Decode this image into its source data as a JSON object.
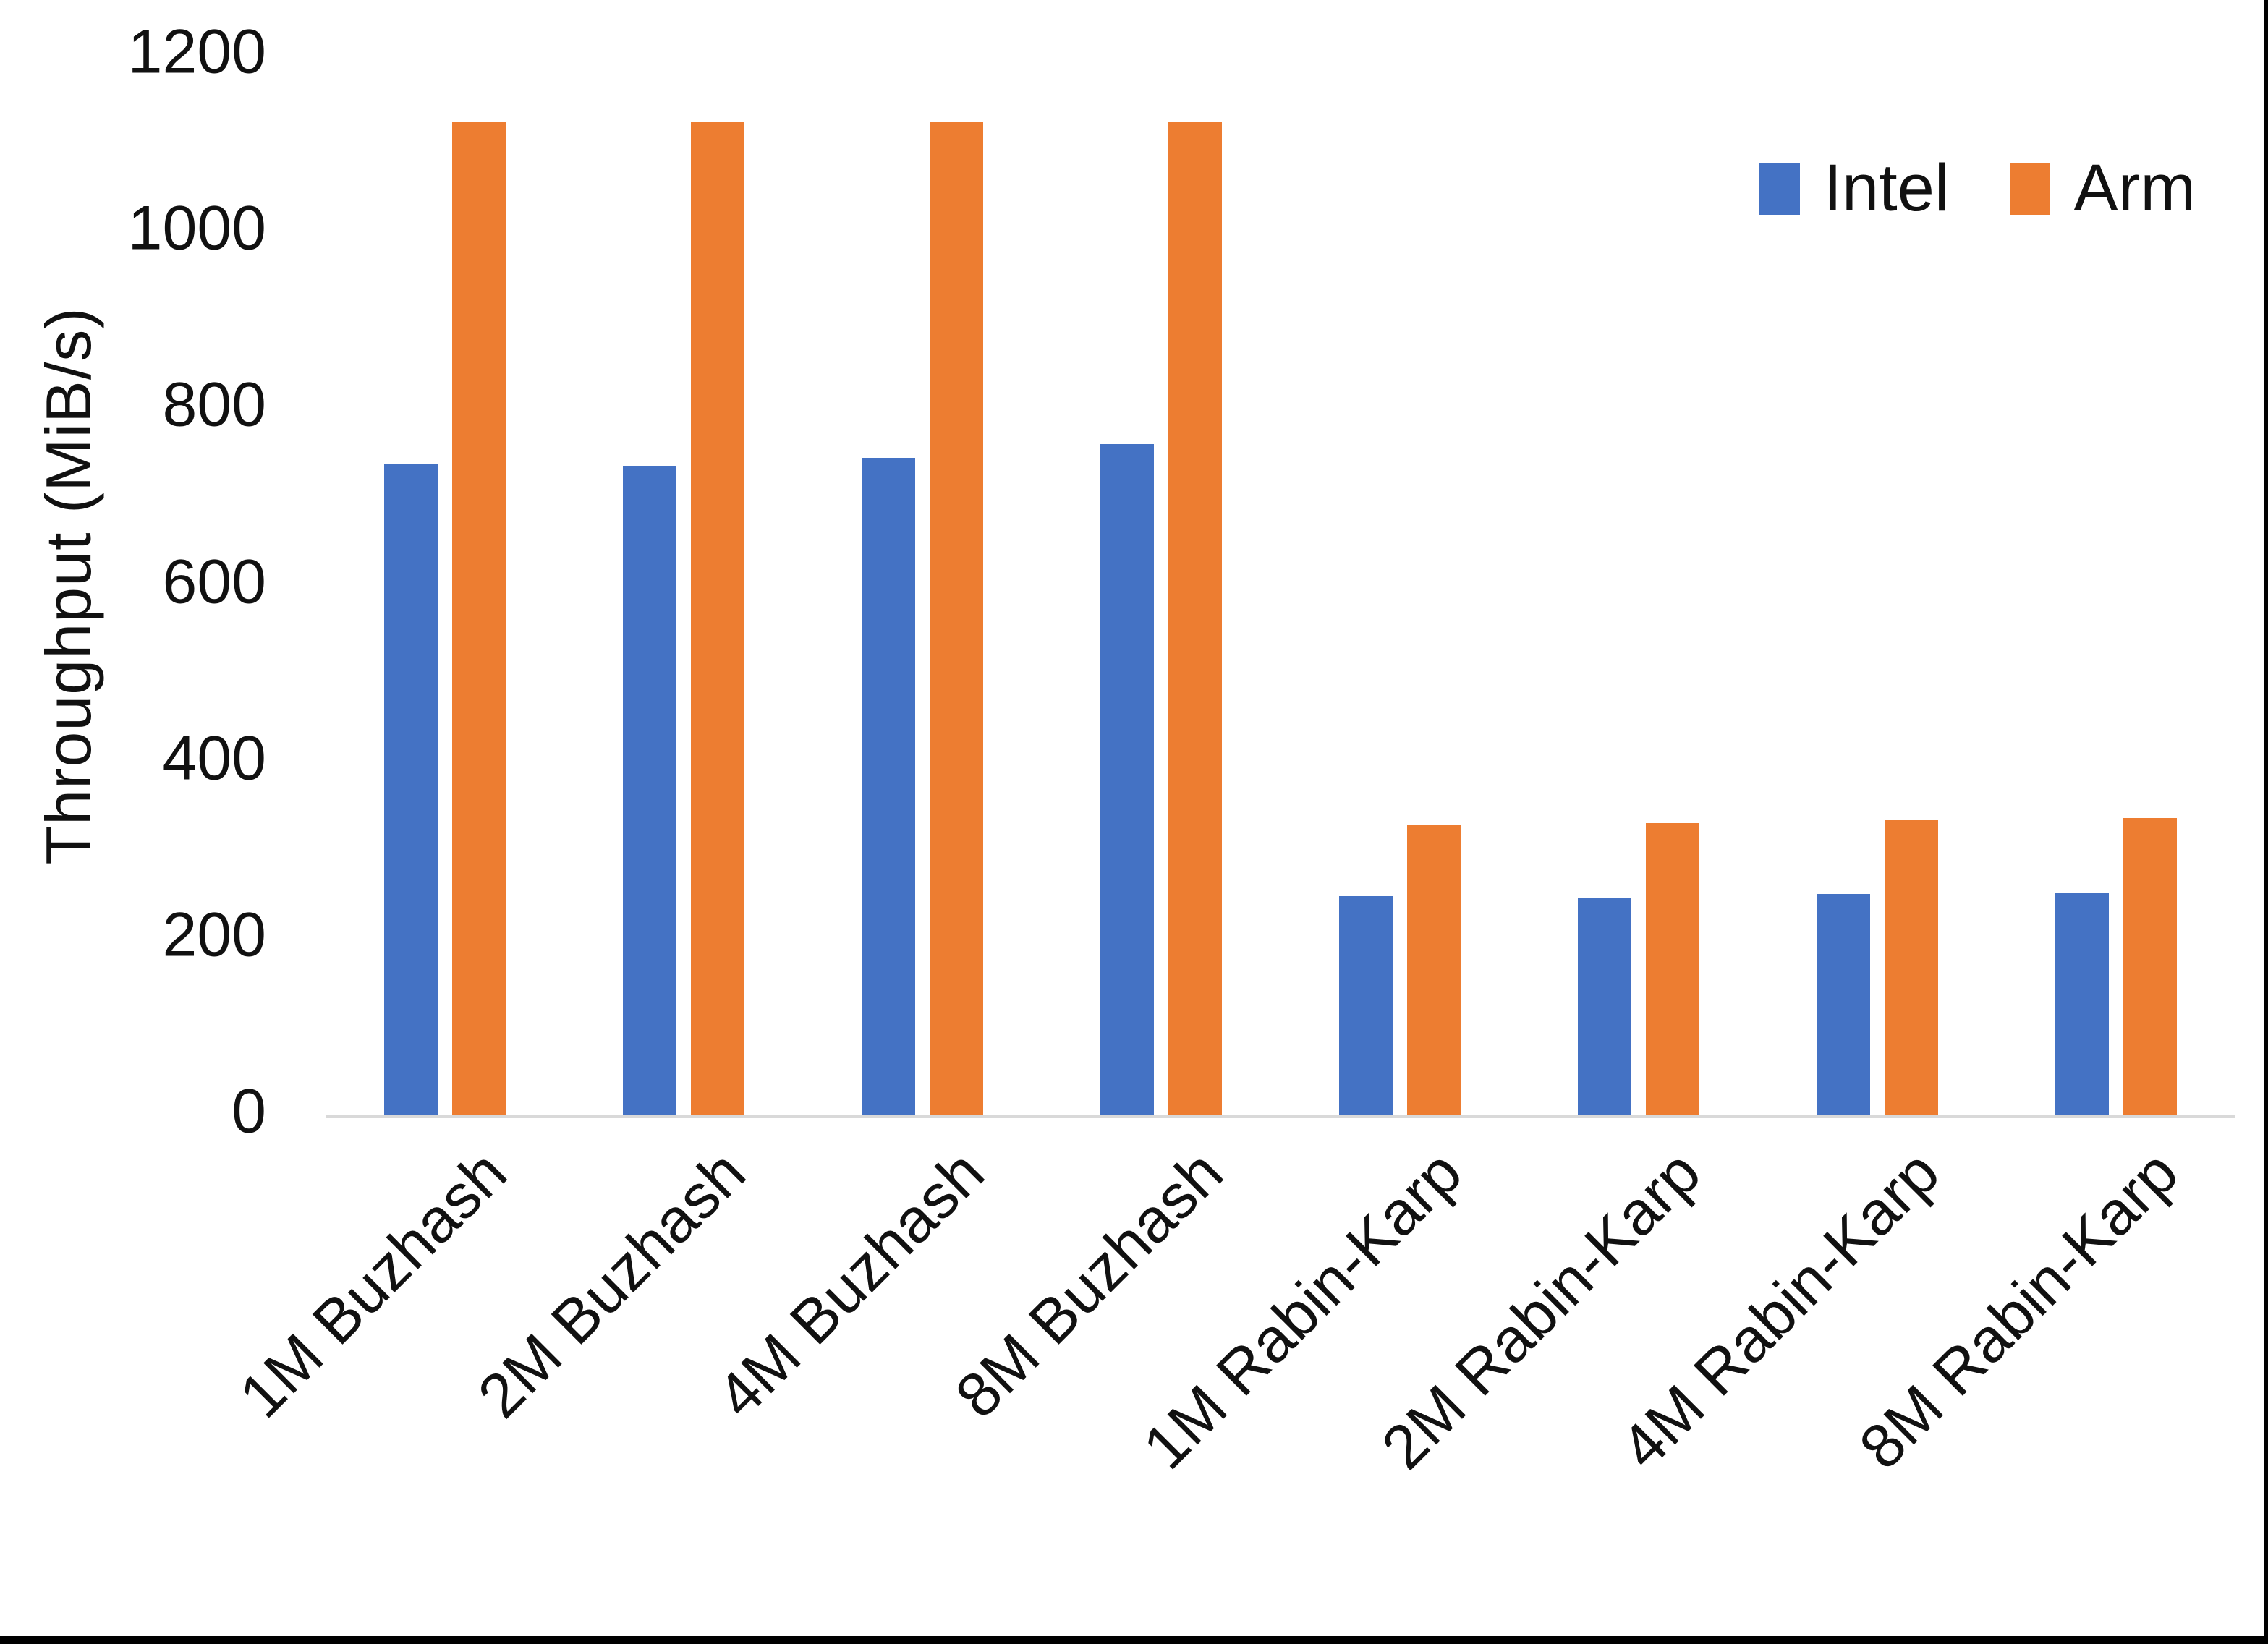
{
  "chart_data": {
    "type": "bar",
    "title": "",
    "ylabel": "Throughput (MiB/s)",
    "ylim": [
      0,
      1200
    ],
    "ytick_interval": 200,
    "yticks": [
      "0",
      "200",
      "400",
      "600",
      "800",
      "1000",
      "1200"
    ],
    "grid": false,
    "legend_position": "top-right",
    "categories": [
      "1M Buzhash",
      "2M Buzhash",
      "4M Buzhash",
      "8M Buzhash",
      "1M Rabin-Karp",
      "2M Rabin-Karp",
      "4M Rabin-Karp",
      "8M Rabin-Karp"
    ],
    "series": [
      {
        "name": "Intel",
        "color": "#4472C4",
        "values": [
          736,
          735,
          744,
          759,
          247,
          246,
          250,
          251
        ]
      },
      {
        "name": "Arm",
        "color": "#ED7D31",
        "values": [
          1124,
          1124,
          1124,
          1124,
          328,
          330,
          333,
          336
        ]
      }
    ]
  },
  "colors": {
    "intel": "#4472C4",
    "arm": "#ED7D31",
    "axis_line": "#d9d9d9",
    "text": "#111111",
    "background": "#ffffff",
    "frame": "#000000"
  }
}
